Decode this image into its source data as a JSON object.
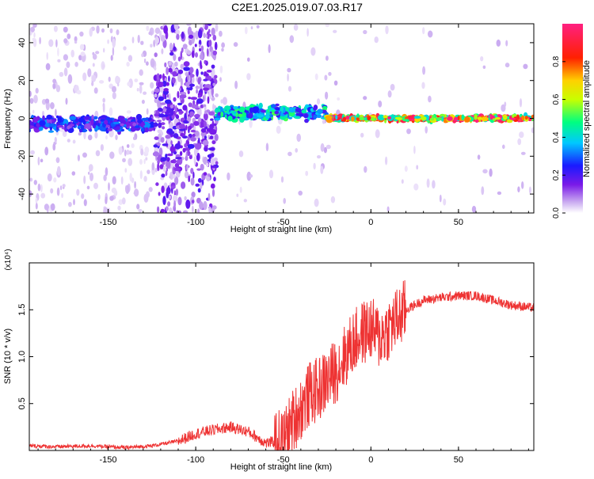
{
  "title": "C2E1.2025.019.07.03.R17",
  "chart_data": [
    {
      "type": "heatmap",
      "xlabel": "Height of straight line (km)",
      "ylabel": "Frequency (Hz)",
      "xlim": [
        -195,
        93
      ],
      "ylim": [
        -50,
        50
      ],
      "xticks": [
        -150,
        -100,
        -50,
        0,
        50
      ],
      "yticks": [
        -40,
        -20,
        0,
        20,
        40
      ],
      "colorbar": {
        "label": "Normalized spectral amplitude",
        "range": [
          0,
          1
        ],
        "ticks": [
          0.0,
          0.2,
          0.4,
          0.6,
          0.8
        ],
        "colors": [
          "#ffffff",
          "#c8a8f0",
          "#7a1ae8",
          "#1a1aff",
          "#00c8ff",
          "#00ff80",
          "#c8ff00",
          "#ffd000",
          "#ff2000",
          "#ff2080"
        ]
      },
      "bands": [
        {
          "x": [
            -195,
            -123
          ],
          "center": -3,
          "width": 6,
          "amplitude": 0.35
        },
        {
          "x": [
            -123,
            -88
          ],
          "center": 0,
          "width": 50,
          "amplitude": 0.25
        },
        {
          "x": [
            -88,
            -25
          ],
          "center": 3,
          "width": 6,
          "amplitude": 0.5
        },
        {
          "x": [
            -25,
            93
          ],
          "center": 0,
          "width": 2,
          "amplitude": 0.9
        }
      ]
    },
    {
      "type": "line",
      "xlabel": "Height of straight line (km)",
      "ylabel": "SNR (10 * v/v)",
      "scale_label": "(x10⁴)",
      "xlim": [
        -195,
        93
      ],
      "ylim": [
        0,
        2.0
      ],
      "xticks": [
        -150,
        -100,
        -50,
        0,
        50
      ],
      "yticks": [
        0.5,
        1.0,
        1.5
      ],
      "yticklabels": [
        "0.5",
        "1.0",
        "1.5"
      ],
      "color": "#ee3333",
      "series": [
        {
          "x": [
            -195,
            -180,
            -160,
            -140,
            -125,
            -110,
            -100,
            -90,
            -80,
            -70,
            -60,
            -50,
            -45,
            -40,
            -35,
            -30,
            -25,
            -20,
            -15,
            -10,
            -5,
            0,
            5,
            10,
            15,
            20,
            30,
            40,
            50,
            60,
            70,
            80,
            93
          ],
          "values": [
            0.05,
            0.04,
            0.05,
            0.03,
            0.05,
            0.1,
            0.18,
            0.22,
            0.25,
            0.2,
            0.08,
            0.1,
            0.3,
            0.45,
            0.6,
            0.65,
            0.75,
            0.85,
            1.0,
            1.15,
            1.25,
            1.3,
            1.2,
            1.3,
            1.4,
            1.5,
            1.6,
            1.63,
            1.65,
            1.65,
            1.6,
            1.55,
            1.52
          ]
        }
      ]
    }
  ]
}
